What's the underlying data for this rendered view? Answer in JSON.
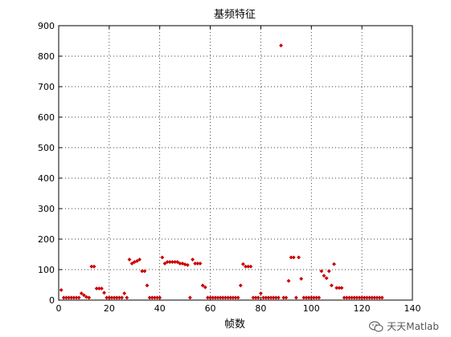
{
  "chart_data": {
    "type": "scatter",
    "title": "基频特征",
    "xlabel": "帧数",
    "ylabel": "",
    "xlim": [
      0,
      140
    ],
    "ylim": [
      0,
      900
    ],
    "xticks": [
      0,
      20,
      40,
      60,
      80,
      100,
      120,
      140
    ],
    "yticks": [
      0,
      100,
      200,
      300,
      400,
      500,
      600,
      700,
      800,
      900
    ],
    "grid": true,
    "grid_style": "dotted",
    "marker_color": "#cc0000",
    "marker": "diamond",
    "series": [
      {
        "points": [
          [
            1,
            33
          ],
          [
            2,
            8
          ],
          [
            3,
            8
          ],
          [
            4,
            8
          ],
          [
            5,
            8
          ],
          [
            6,
            8
          ],
          [
            7,
            8
          ],
          [
            8,
            8
          ],
          [
            9,
            22
          ],
          [
            10,
            16
          ],
          [
            11,
            10
          ],
          [
            12,
            8
          ],
          [
            13,
            110
          ],
          [
            14,
            110
          ],
          [
            15,
            38
          ],
          [
            16,
            38
          ],
          [
            17,
            38
          ],
          [
            18,
            24
          ],
          [
            19,
            8
          ],
          [
            20,
            8
          ],
          [
            21,
            8
          ],
          [
            22,
            8
          ],
          [
            23,
            8
          ],
          [
            24,
            8
          ],
          [
            25,
            8
          ],
          [
            26,
            22
          ],
          [
            27,
            8
          ],
          [
            28,
            133
          ],
          [
            29,
            120
          ],
          [
            30,
            125
          ],
          [
            31,
            128
          ],
          [
            32,
            133
          ],
          [
            33,
            95
          ],
          [
            34,
            95
          ],
          [
            35,
            48
          ],
          [
            36,
            8
          ],
          [
            37,
            8
          ],
          [
            38,
            8
          ],
          [
            39,
            8
          ],
          [
            40,
            8
          ],
          [
            41,
            140
          ],
          [
            42,
            120
          ],
          [
            43,
            125
          ],
          [
            44,
            125
          ],
          [
            45,
            125
          ],
          [
            46,
            125
          ],
          [
            47,
            125
          ],
          [
            48,
            120
          ],
          [
            49,
            120
          ],
          [
            50,
            117
          ],
          [
            51,
            115
          ],
          [
            52,
            8
          ],
          [
            53,
            133
          ],
          [
            54,
            120
          ],
          [
            55,
            120
          ],
          [
            56,
            120
          ],
          [
            57,
            48
          ],
          [
            58,
            42
          ],
          [
            59,
            8
          ],
          [
            60,
            8
          ],
          [
            61,
            8
          ],
          [
            62,
            8
          ],
          [
            63,
            8
          ],
          [
            64,
            8
          ],
          [
            65,
            8
          ],
          [
            66,
            8
          ],
          [
            67,
            8
          ],
          [
            68,
            8
          ],
          [
            69,
            8
          ],
          [
            70,
            8
          ],
          [
            71,
            8
          ],
          [
            72,
            48
          ],
          [
            73,
            118
          ],
          [
            74,
            110
          ],
          [
            75,
            110
          ],
          [
            76,
            110
          ],
          [
            77,
            8
          ],
          [
            78,
            8
          ],
          [
            79,
            8
          ],
          [
            80,
            22
          ],
          [
            81,
            8
          ],
          [
            82,
            8
          ],
          [
            83,
            8
          ],
          [
            84,
            8
          ],
          [
            85,
            8
          ],
          [
            86,
            8
          ],
          [
            87,
            8
          ],
          [
            88,
            835
          ],
          [
            89,
            8
          ],
          [
            90,
            8
          ],
          [
            91,
            63
          ],
          [
            92,
            140
          ],
          [
            93,
            140
          ],
          [
            94,
            8
          ],
          [
            95,
            140
          ],
          [
            96,
            70
          ],
          [
            97,
            8
          ],
          [
            98,
            8
          ],
          [
            99,
            8
          ],
          [
            100,
            8
          ],
          [
            101,
            8
          ],
          [
            102,
            8
          ],
          [
            103,
            8
          ],
          [
            104,
            95
          ],
          [
            105,
            80
          ],
          [
            106,
            72
          ],
          [
            107,
            95
          ],
          [
            108,
            48
          ],
          [
            109,
            118
          ],
          [
            110,
            40
          ],
          [
            111,
            40
          ],
          [
            112,
            40
          ],
          [
            113,
            8
          ],
          [
            114,
            8
          ],
          [
            115,
            8
          ],
          [
            116,
            8
          ],
          [
            117,
            8
          ],
          [
            118,
            8
          ],
          [
            119,
            8
          ],
          [
            120,
            8
          ],
          [
            121,
            8
          ],
          [
            122,
            8
          ],
          [
            123,
            8
          ],
          [
            124,
            8
          ],
          [
            125,
            8
          ],
          [
            126,
            8
          ],
          [
            127,
            8
          ],
          [
            128,
            8
          ]
        ]
      }
    ]
  },
  "watermark": {
    "text": "天天Matlab",
    "icon": "wechat-icon"
  }
}
